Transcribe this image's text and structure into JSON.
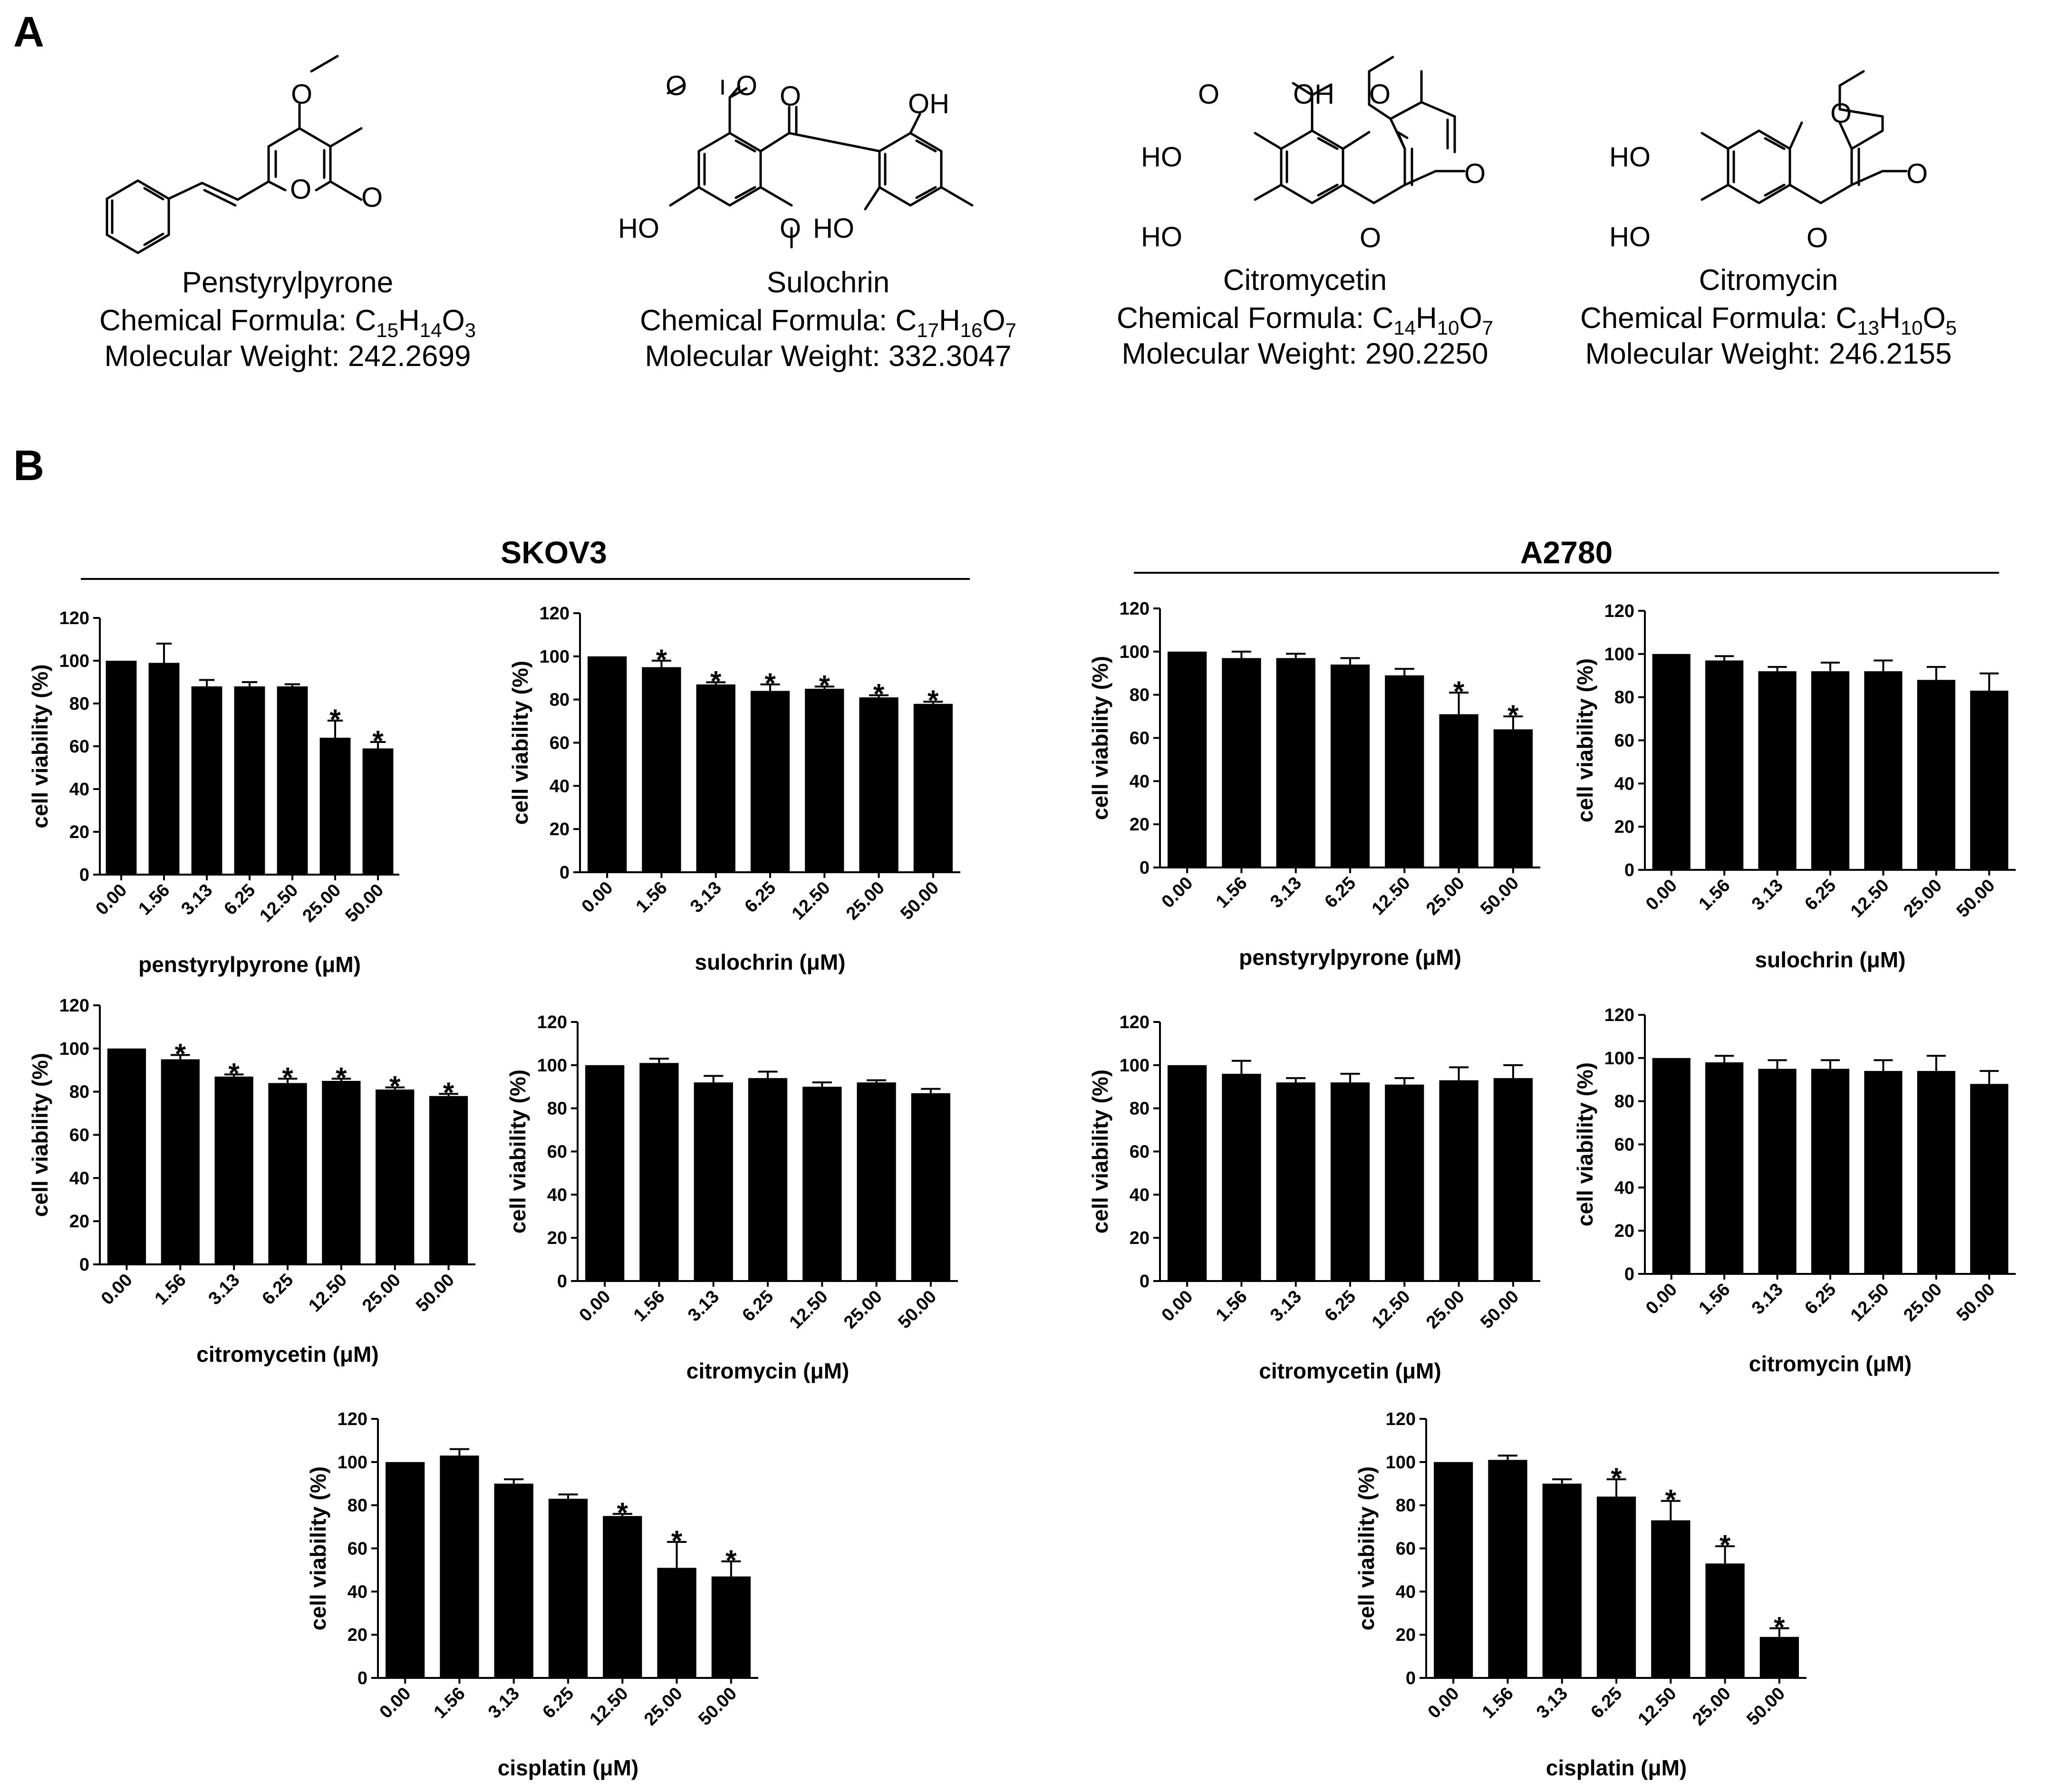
{
  "panels": {
    "a": "A",
    "b": "B"
  },
  "compounds": [
    {
      "name": "Penstyrylpyrone",
      "formula_label": "Chemical Formula: ",
      "formula": [
        [
          "C",
          ""
        ],
        [
          "",
          "15"
        ],
        [
          "H",
          ""
        ],
        [
          "",
          "14"
        ],
        [
          "O",
          ""
        ],
        [
          "",
          "3"
        ]
      ],
      "weight": "Molecular Weight: 242.2699"
    },
    {
      "name": "Sulochrin",
      "formula_label": "Chemical Formula: ",
      "formula": [
        [
          "C",
          ""
        ],
        [
          "",
          "17"
        ],
        [
          "H",
          ""
        ],
        [
          "",
          "16"
        ],
        [
          "O",
          ""
        ],
        [
          "",
          "7"
        ]
      ],
      "weight": "Molecular Weight: 332.3047"
    },
    {
      "name": "Citromycetin",
      "formula_label": "Chemical Formula: ",
      "formula": [
        [
          "C",
          ""
        ],
        [
          "",
          "14"
        ],
        [
          "H",
          ""
        ],
        [
          "",
          "10"
        ],
        [
          "O",
          ""
        ],
        [
          "",
          "7"
        ]
      ],
      "weight": "Molecular Weight: 290.2250"
    },
    {
      "name": "Citromycin",
      "formula_label": "Chemical Formula: ",
      "formula": [
        [
          "C",
          ""
        ],
        [
          "",
          "13"
        ],
        [
          "H",
          ""
        ],
        [
          "",
          "10"
        ],
        [
          "O",
          ""
        ],
        [
          "",
          "5"
        ]
      ],
      "weight": "Molecular Weight: 246.2155"
    }
  ],
  "atom_labels": {
    "O": "O",
    "OH": "OH",
    "HO": "HO"
  },
  "groups": {
    "left": "SKOV3",
    "right": "A2780"
  },
  "chart_data": [
    {
      "type": "bar",
      "group": "SKOV3",
      "categories": [
        "0.00",
        "1.56",
        "3.13",
        "6.25",
        "12.50",
        "25.00",
        "50.00"
      ],
      "values": [
        100,
        99,
        88,
        88,
        88,
        64,
        59
      ],
      "errors": [
        0,
        9,
        3,
        2,
        1,
        8,
        3
      ],
      "significant": [
        false,
        false,
        false,
        false,
        false,
        true,
        true
      ],
      "xlabel": "penstyrylpyrone (μM)",
      "ylabel": "cell viability (%)",
      "ylim": [
        0,
        120
      ],
      "yticks": [
        0,
        20,
        40,
        60,
        80,
        100,
        120
      ]
    },
    {
      "type": "bar",
      "group": "SKOV3",
      "categories": [
        "0.00",
        "1.56",
        "3.13",
        "6.25",
        "12.50",
        "25.00",
        "50.00"
      ],
      "values": [
        100,
        95,
        87,
        84,
        85,
        81,
        78
      ],
      "errors": [
        0,
        3,
        1,
        3,
        1,
        1,
        1
      ],
      "significant": [
        false,
        true,
        true,
        true,
        true,
        true,
        true
      ],
      "xlabel": "sulochrin (μM)",
      "ylabel": "cell viability (%)",
      "ylim": [
        0,
        120
      ],
      "yticks": [
        0,
        20,
        40,
        60,
        80,
        100,
        120
      ]
    },
    {
      "type": "bar",
      "group": "A2780",
      "categories": [
        "0.00",
        "1.56",
        "3.13",
        "6.25",
        "12.50",
        "25.00",
        "50.00"
      ],
      "values": [
        100,
        97,
        97,
        94,
        89,
        71,
        64
      ],
      "errors": [
        0,
        3,
        2,
        3,
        3,
        10,
        6
      ],
      "significant": [
        false,
        false,
        false,
        false,
        false,
        true,
        true
      ],
      "xlabel": "penstyrylpyrone (μM)",
      "ylabel": "cell viability (%)",
      "ylim": [
        0,
        120
      ],
      "yticks": [
        0,
        20,
        40,
        60,
        80,
        100,
        120
      ]
    },
    {
      "type": "bar",
      "group": "A2780",
      "categories": [
        "0.00",
        "1.56",
        "3.13",
        "6.25",
        "12.50",
        "25.00",
        "50.00"
      ],
      "values": [
        100,
        97,
        92,
        92,
        92,
        88,
        83
      ],
      "errors": [
        0,
        2,
        2,
        4,
        5,
        6,
        8
      ],
      "significant": [
        false,
        false,
        false,
        false,
        false,
        false,
        false
      ],
      "xlabel": "sulochrin (μM)",
      "ylabel": "cell viability (%)",
      "ylim": [
        0,
        120
      ],
      "yticks": [
        0,
        20,
        40,
        60,
        80,
        100,
        120
      ]
    },
    {
      "type": "bar",
      "group": "SKOV3",
      "categories": [
        "0.00",
        "1.56",
        "3.13",
        "6.25",
        "12.50",
        "25.00",
        "50.00"
      ],
      "values": [
        100,
        95,
        87,
        84,
        85,
        81,
        78
      ],
      "errors": [
        0,
        2,
        1,
        2,
        1,
        1,
        1
      ],
      "significant": [
        false,
        true,
        true,
        true,
        true,
        true,
        true
      ],
      "xlabel": "citromycetin (μM)",
      "ylabel": "cell viability (%)",
      "ylim": [
        0,
        120
      ],
      "yticks": [
        0,
        20,
        40,
        60,
        80,
        100,
        120
      ]
    },
    {
      "type": "bar",
      "group": "SKOV3",
      "categories": [
        "0.00",
        "1.56",
        "3.13",
        "6.25",
        "12.50",
        "25.00",
        "50.00"
      ],
      "values": [
        100,
        101,
        92,
        94,
        90,
        92,
        87
      ],
      "errors": [
        0,
        2,
        3,
        3,
        2,
        1,
        2
      ],
      "significant": [
        false,
        false,
        false,
        false,
        false,
        false,
        false
      ],
      "xlabel": "citromycin (μM)",
      "ylabel": "cell viability (%)",
      "ylim": [
        0,
        120
      ],
      "yticks": [
        0,
        20,
        40,
        60,
        80,
        100,
        120
      ]
    },
    {
      "type": "bar",
      "group": "A2780",
      "categories": [
        "0.00",
        "1.56",
        "3.13",
        "6.25",
        "12.50",
        "25.00",
        "50.00"
      ],
      "values": [
        100,
        96,
        92,
        92,
        91,
        93,
        94
      ],
      "errors": [
        0,
        6,
        2,
        4,
        3,
        6,
        6
      ],
      "significant": [
        false,
        false,
        false,
        false,
        false,
        false,
        false
      ],
      "xlabel": "citromycetin (μM)",
      "ylabel": "cell viability (%)",
      "ylim": [
        0,
        120
      ],
      "yticks": [
        0,
        20,
        40,
        60,
        80,
        100,
        120
      ]
    },
    {
      "type": "bar",
      "group": "A2780",
      "categories": [
        "0.00",
        "1.56",
        "3.13",
        "6.25",
        "12.50",
        "25.00",
        "50.00"
      ],
      "values": [
        100,
        98,
        95,
        95,
        94,
        94,
        88
      ],
      "errors": [
        0,
        3,
        4,
        4,
        5,
        7,
        6
      ],
      "significant": [
        false,
        false,
        false,
        false,
        false,
        false,
        false
      ],
      "xlabel": "citromycin (μM)",
      "ylabel": "cell viability (%)",
      "ylim": [
        0,
        120
      ],
      "yticks": [
        0,
        20,
        40,
        60,
        80,
        100,
        120
      ]
    },
    {
      "type": "bar",
      "group": "SKOV3",
      "categories": [
        "0.00",
        "1.56",
        "3.13",
        "6.25",
        "12.50",
        "25.00",
        "50.00"
      ],
      "values": [
        100,
        103,
        90,
        83,
        75,
        51,
        47
      ],
      "errors": [
        0,
        3,
        2,
        2,
        1,
        12,
        7
      ],
      "significant": [
        false,
        false,
        false,
        false,
        true,
        true,
        true
      ],
      "xlabel": "cisplatin  (μM)",
      "ylabel": "cell viability (%)",
      "ylim": [
        0,
        120
      ],
      "yticks": [
        0,
        20,
        40,
        60,
        80,
        100,
        120
      ]
    },
    {
      "type": "bar",
      "group": "A2780",
      "categories": [
        "0.00",
        "1.56",
        "3.13",
        "6.25",
        "12.50",
        "25.00",
        "50.00"
      ],
      "values": [
        100,
        101,
        90,
        84,
        73,
        53,
        19
      ],
      "errors": [
        0,
        2,
        2,
        8,
        9,
        8,
        4
      ],
      "significant": [
        false,
        false,
        false,
        true,
        true,
        true,
        true
      ],
      "xlabel": "cisplatin  (μM)",
      "ylabel": "cell viability (%)",
      "ylim": [
        0,
        120
      ],
      "yticks": [
        0,
        20,
        40,
        60,
        80,
        100,
        120
      ]
    }
  ],
  "significance_marker": "*"
}
